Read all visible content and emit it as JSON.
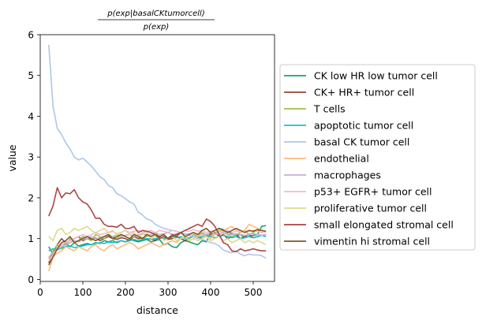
{
  "chart_data": {
    "type": "line",
    "title_numerator": "p(exp|basalCKtumorcell)",
    "title_denominator": "p(exp)",
    "xlabel": "distance",
    "ylabel": "value",
    "xlim": [
      0,
      550
    ],
    "ylim": [
      -0.05,
      6.0
    ],
    "xticks": [
      0,
      100,
      200,
      300,
      400,
      500
    ],
    "yticks": [
      0,
      1,
      2,
      3,
      4,
      5,
      6
    ],
    "grid": false,
    "legend_position": "right, outside plot",
    "x": [
      20,
      30,
      40,
      50,
      60,
      70,
      80,
      90,
      100,
      110,
      120,
      130,
      140,
      150,
      160,
      170,
      180,
      190,
      200,
      210,
      220,
      230,
      240,
      250,
      260,
      270,
      280,
      290,
      300,
      310,
      320,
      330,
      340,
      350,
      360,
      370,
      380,
      390,
      400,
      410,
      420,
      430,
      440,
      450,
      460,
      470,
      480,
      490,
      500,
      510,
      520,
      530
    ],
    "series": [
      {
        "name": "CK low HR low tumor cell",
        "color": "#1b9e77",
        "values": [
          0.8,
          0.62,
          0.75,
          0.85,
          0.88,
          0.8,
          0.9,
          0.82,
          0.85,
          0.88,
          0.85,
          0.9,
          0.88,
          0.95,
          0.92,
          0.95,
          0.9,
          0.95,
          0.92,
          0.98,
          0.95,
          0.92,
          0.95,
          0.98,
          0.92,
          0.95,
          0.98,
          0.85,
          0.88,
          0.8,
          0.78,
          0.9,
          0.95,
          0.92,
          0.88,
          0.85,
          0.95,
          0.92,
          1.15,
          1.2,
          1.25,
          1.22,
          1.18,
          1.12,
          1.08,
          1.1,
          1.02,
          1.05,
          1.08,
          1.1,
          1.3,
          1.32
        ]
      },
      {
        "name": "CK+ HR+ tumor cell",
        "color": "#8c4a38",
        "values": [
          0.4,
          0.65,
          0.85,
          1.0,
          0.9,
          0.95,
          1.0,
          1.05,
          0.95,
          1.0,
          0.98,
          1.02,
          0.95,
          1.0,
          1.05,
          1.0,
          0.98,
          1.02,
          1.0,
          0.95,
          1.05,
          1.0,
          1.02,
          0.98,
          1.0,
          0.95,
          1.05,
          1.0,
          0.98,
          1.0,
          1.05,
          1.0,
          0.95,
          1.0,
          1.1,
          1.05,
          1.0,
          1.05,
          1.1,
          1.15,
          1.05,
          1.1,
          1.0,
          1.05,
          1.1,
          1.0,
          1.05,
          1.1,
          1.02,
          1.05,
          1.08,
          1.1
        ]
      },
      {
        "name": "T cells",
        "color": "#a6c04f",
        "values": [
          0.5,
          0.7,
          0.85,
          0.75,
          0.8,
          1.0,
          0.9,
          0.95,
          1.05,
          1.0,
          0.95,
          1.1,
          1.05,
          1.0,
          1.1,
          1.05,
          1.0,
          1.1,
          1.05,
          1.0,
          1.05,
          1.1,
          1.0,
          1.05,
          1.1,
          1.15,
          1.05,
          1.1,
          1.0,
          1.05,
          1.1,
          1.15,
          1.05,
          1.0,
          1.1,
          1.05,
          1.15,
          1.1,
          1.05,
          1.1,
          1.2,
          1.15,
          1.1,
          1.05,
          1.1,
          1.15,
          1.2,
          1.1,
          1.15,
          1.2,
          1.15,
          1.18
        ]
      },
      {
        "name": "apoptotic tumor cell",
        "color": "#17becf",
        "values": [
          0.7,
          0.75,
          0.72,
          0.78,
          0.8,
          0.82,
          0.78,
          0.8,
          0.82,
          0.85,
          0.85,
          0.88,
          0.9,
          0.88,
          0.92,
          0.9,
          0.92,
          0.95,
          0.92,
          0.95,
          0.98,
          0.95,
          0.98,
          1.0,
          0.98,
          1.0,
          1.02,
          1.0,
          1.02,
          1.05,
          1.02,
          1.05,
          1.0,
          1.02,
          1.05,
          1.02,
          1.05,
          1.08,
          1.05,
          1.02,
          1.05,
          1.08,
          1.05,
          1.02,
          1.05,
          1.0,
          1.02,
          1.05,
          1.02,
          1.05,
          1.08,
          1.05
        ]
      },
      {
        "name": "basal CK tumor cell",
        "color": "#aec7e8",
        "values": [
          5.75,
          4.25,
          3.7,
          3.55,
          3.35,
          3.2,
          3.0,
          2.93,
          2.97,
          2.88,
          2.78,
          2.65,
          2.52,
          2.45,
          2.3,
          2.25,
          2.1,
          2.05,
          1.98,
          1.9,
          1.85,
          1.65,
          1.58,
          1.48,
          1.45,
          1.35,
          1.3,
          1.25,
          1.22,
          1.2,
          1.18,
          1.15,
          1.12,
          1.08,
          1.05,
          1.0,
          0.98,
          0.95,
          0.9,
          0.88,
          0.82,
          0.72,
          0.68,
          0.65,
          0.7,
          0.62,
          0.58,
          0.62,
          0.6,
          0.6,
          0.58,
          0.52
        ]
      },
      {
        "name": "endothelial",
        "color": "#ffbb78",
        "values": [
          0.2,
          0.55,
          0.65,
          0.7,
          0.8,
          0.75,
          0.7,
          0.8,
          0.75,
          0.7,
          0.8,
          0.85,
          0.75,
          0.7,
          0.8,
          0.85,
          0.75,
          0.8,
          0.85,
          0.9,
          0.85,
          0.75,
          0.8,
          0.85,
          0.9,
          0.85,
          0.8,
          0.85,
          0.9,
          0.95,
          0.9,
          1.0,
          1.05,
          0.95,
          1.0,
          1.05,
          1.1,
          1.05,
          1.0,
          1.1,
          1.15,
          1.2,
          1.25,
          1.3,
          1.2,
          1.15,
          1.2,
          1.35,
          1.3,
          1.25,
          1.2,
          1.15
        ]
      },
      {
        "name": "macrophages",
        "color": "#c5b0d5",
        "values": [
          0.55,
          0.65,
          0.75,
          0.8,
          0.85,
          0.9,
          0.95,
          0.92,
          0.98,
          1.0,
          1.05,
          1.0,
          1.02,
          1.05,
          1.08,
          1.05,
          1.1,
          1.05,
          1.08,
          1.1,
          1.05,
          1.1,
          1.12,
          1.08,
          1.1,
          1.15,
          1.1,
          1.12,
          1.15,
          1.1,
          1.12,
          1.15,
          1.1,
          1.12,
          1.15,
          1.1,
          1.12,
          1.1,
          1.15,
          1.12,
          1.1,
          1.15,
          1.12,
          1.1,
          1.12,
          1.1,
          1.08,
          1.1,
          1.12,
          1.1,
          1.08,
          1.1
        ]
      },
      {
        "name": "p53+ EGFR+ tumor cell",
        "color": "#f7b6d2",
        "values": [
          0.45,
          0.6,
          0.75,
          0.85,
          0.9,
          0.95,
          1.0,
          1.05,
          1.1,
          1.05,
          1.1,
          1.15,
          1.1,
          1.12,
          1.15,
          1.18,
          1.12,
          1.15,
          1.2,
          1.15,
          1.18,
          1.2,
          1.15,
          1.18,
          1.2,
          1.15,
          1.2,
          1.18,
          1.15,
          1.2,
          1.18,
          1.15,
          1.2,
          1.18,
          1.22,
          1.18,
          1.2,
          1.15,
          1.18,
          1.2,
          1.15,
          1.18,
          1.2,
          1.15,
          1.18,
          1.2,
          1.15,
          1.18,
          1.2,
          1.18,
          1.15,
          1.18
        ]
      },
      {
        "name": "proliferative tumor cell",
        "color": "#dbdb8d",
        "values": [
          1.05,
          0.95,
          1.2,
          1.25,
          1.1,
          1.15,
          1.25,
          1.2,
          1.25,
          1.3,
          1.2,
          1.15,
          1.2,
          1.25,
          1.15,
          1.2,
          1.1,
          1.15,
          1.2,
          1.1,
          1.15,
          1.05,
          1.1,
          1.15,
          1.0,
          1.05,
          1.1,
          0.95,
          1.0,
          1.05,
          0.95,
          1.0,
          1.05,
          0.95,
          1.0,
          0.95,
          1.0,
          1.05,
          0.95,
          1.0,
          1.05,
          0.95,
          1.0,
          0.9,
          0.95,
          1.0,
          0.9,
          0.95,
          0.9,
          0.95,
          0.9,
          0.85
        ]
      },
      {
        "name": "small elongated stromal cell",
        "color": "#a94643",
        "values": [
          1.55,
          1.8,
          2.25,
          2.0,
          2.12,
          2.1,
          2.2,
          2.0,
          1.9,
          1.85,
          1.7,
          1.5,
          1.5,
          1.35,
          1.3,
          1.3,
          1.28,
          1.35,
          1.25,
          1.25,
          1.3,
          1.15,
          1.2,
          1.18,
          1.15,
          1.1,
          1.0,
          1.05,
          1.0,
          1.1,
          1.05,
          1.15,
          1.2,
          1.25,
          1.3,
          1.35,
          1.3,
          1.48,
          1.42,
          1.3,
          1.1,
          0.9,
          0.85,
          0.7,
          0.68,
          0.75,
          0.7,
          0.72,
          0.75,
          0.72,
          0.7,
          0.7
        ]
      },
      {
        "name": "vimentin hi stromal cell",
        "color": "#7f5a24",
        "values": [
          0.35,
          0.55,
          0.75,
          0.9,
          0.95,
          1.05,
          0.9,
          0.95,
          1.0,
          1.05,
          1.0,
          0.95,
          1.0,
          1.05,
          1.1,
          1.0,
          1.05,
          1.1,
          1.05,
          1.0,
          1.1,
          1.05,
          1.0,
          1.1,
          1.05,
          1.1,
          1.05,
          1.1,
          1.0,
          1.05,
          1.1,
          1.15,
          1.05,
          1.1,
          1.15,
          1.1,
          1.2,
          1.25,
          1.15,
          1.2,
          1.25,
          1.2,
          1.15,
          1.2,
          1.25,
          1.2,
          1.15,
          1.2,
          1.18,
          1.22,
          1.2,
          1.18
        ]
      }
    ]
  }
}
